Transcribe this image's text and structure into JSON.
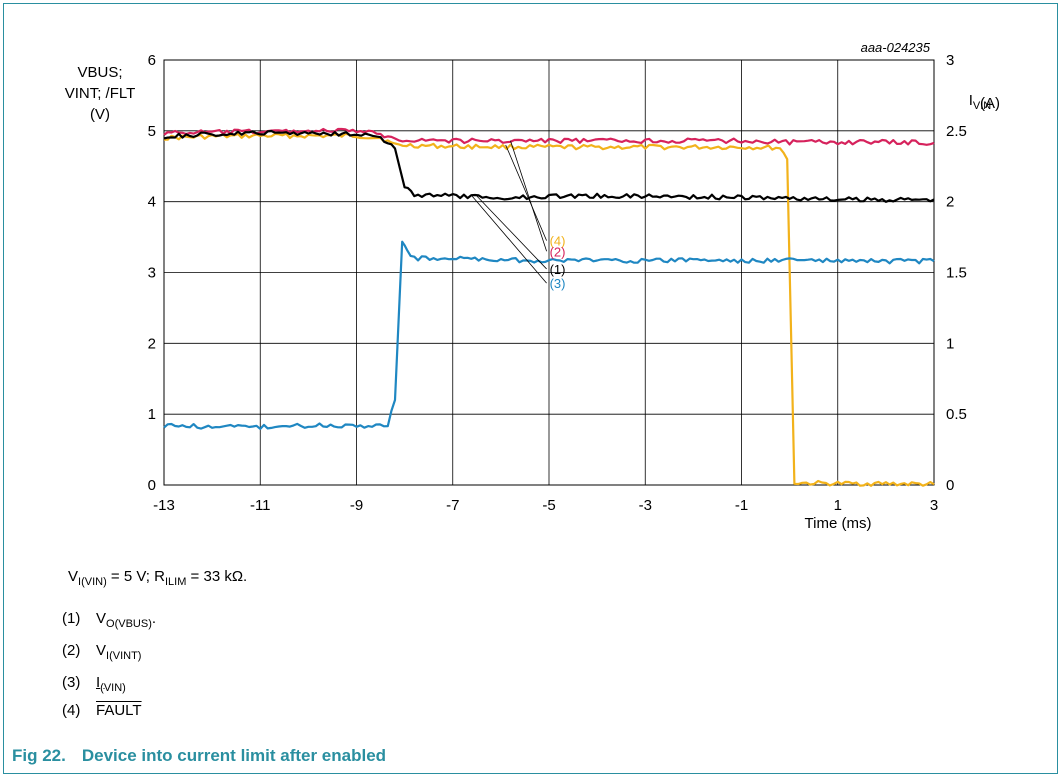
{
  "chart_data": {
    "type": "line",
    "code": "aaa-024235",
    "xlabel": "Time (ms)",
    "xlim": [
      -13,
      3
    ],
    "xticks": [
      "-13",
      "-11",
      "-9",
      "-7",
      "-5",
      "-3",
      "-1",
      "1",
      "3"
    ],
    "ylabel_left": [
      "VBUS;",
      "VINT; /FLT",
      "(V)"
    ],
    "ylim_left": [
      0,
      6
    ],
    "yticks_left": [
      "0",
      "1",
      "2",
      "3",
      "4",
      "5",
      "6"
    ],
    "ylabel_right": {
      "base": "I",
      "sub": "VIN",
      "unit": "(A)"
    },
    "ylim_right": [
      0,
      3
    ],
    "yticks_right": [
      "0",
      "0.5",
      "1",
      "1.5",
      "2",
      "2.5",
      "3"
    ],
    "grid": true,
    "series": [
      {
        "name": "(1)",
        "color": "#000000",
        "axis": "left",
        "points": [
          [
            -13,
            4.92
          ],
          [
            -12,
            4.95
          ],
          [
            -11,
            4.97
          ],
          [
            -10,
            4.97
          ],
          [
            -8.9,
            4.96
          ],
          [
            -8.5,
            4.9
          ],
          [
            -8.2,
            4.75
          ],
          [
            -8.0,
            4.2
          ],
          [
            -7.8,
            4.1
          ],
          [
            -7,
            4.08
          ],
          [
            -6,
            4.05
          ],
          [
            -5,
            4.08
          ],
          [
            -4,
            4.08
          ],
          [
            -3,
            4.08
          ],
          [
            -2,
            4.07
          ],
          [
            -1,
            4.06
          ],
          [
            0,
            4.05
          ],
          [
            1,
            4.03
          ],
          [
            2,
            4.03
          ],
          [
            3,
            4.03
          ]
        ]
      },
      {
        "name": "(2)",
        "color": "#d6225c",
        "axis": "left",
        "points": [
          [
            -13,
            4.97
          ],
          [
            -12,
            4.98
          ],
          [
            -11,
            4.99
          ],
          [
            -10,
            5.0
          ],
          [
            -9,
            5.0
          ],
          [
            -8.5,
            4.95
          ],
          [
            -8.2,
            4.88
          ],
          [
            -7,
            4.86
          ],
          [
            -5,
            4.86
          ],
          [
            -3,
            4.86
          ],
          [
            -1,
            4.86
          ],
          [
            0,
            4.84
          ],
          [
            1,
            4.84
          ],
          [
            2,
            4.84
          ],
          [
            3,
            4.83
          ]
        ]
      },
      {
        "name": "(3)",
        "color": "#1f87c2",
        "axis": "right",
        "points": [
          [
            -13,
            0.42
          ],
          [
            -12,
            0.41
          ],
          [
            -11,
            0.41
          ],
          [
            -10,
            0.42
          ],
          [
            -9,
            0.42
          ],
          [
            -8.35,
            0.42
          ],
          [
            -8.2,
            0.6
          ],
          [
            -8.1,
            1.35
          ],
          [
            -8.05,
            1.72
          ],
          [
            -7.95,
            1.66
          ],
          [
            -7.8,
            1.6
          ],
          [
            -7,
            1.6
          ],
          [
            -6,
            1.59
          ],
          [
            -5,
            1.58
          ],
          [
            -4,
            1.59
          ],
          [
            -3,
            1.58
          ],
          [
            -2,
            1.59
          ],
          [
            -1,
            1.58
          ],
          [
            0,
            1.59
          ],
          [
            1,
            1.58
          ],
          [
            2,
            1.58
          ],
          [
            3,
            1.58
          ]
        ]
      },
      {
        "name": "(4)",
        "color": "#f2b21b",
        "axis": "left",
        "points": [
          [
            -13,
            4.9
          ],
          [
            -12,
            4.92
          ],
          [
            -11,
            4.93
          ],
          [
            -10,
            4.93
          ],
          [
            -9,
            4.93
          ],
          [
            -8.5,
            4.9
          ],
          [
            -8.2,
            4.8
          ],
          [
            -7,
            4.78
          ],
          [
            -5,
            4.77
          ],
          [
            -3,
            4.77
          ],
          [
            -1,
            4.77
          ],
          [
            -0.2,
            4.76
          ],
          [
            -0.05,
            4.6
          ],
          [
            0.1,
            0.03
          ],
          [
            1,
            0.02
          ],
          [
            2,
            0.02
          ],
          [
            3,
            0.01
          ]
        ]
      }
    ],
    "annotations": [
      {
        "text": "(4)",
        "series": "(4)",
        "color": "#f2b21b",
        "from": [
          -5.9,
          4.8
        ],
        "to": [
          -5.05,
          3.45
        ]
      },
      {
        "text": "(2)",
        "series": "(2)",
        "color": "#d6225c",
        "from": [
          -5.8,
          4.86
        ],
        "to": [
          -5.05,
          3.3
        ]
      },
      {
        "text": "(1)",
        "series": "(1)",
        "color": "#000000",
        "from": [
          -6.5,
          4.08
        ],
        "to": [
          -5.05,
          3.05
        ]
      },
      {
        "text": "(3)",
        "series": "(3)",
        "color": "#1f87c2",
        "from": [
          -6.6,
          4.08
        ],
        "to": [
          -5.05,
          2.85
        ]
      }
    ]
  },
  "notes": {
    "conditions": {
      "v": "V",
      "v_sub": "I(VIN)",
      "mid": " = 5 V; R",
      "r_sub": "ILIM",
      "tail": " = 33 kΩ."
    },
    "items": [
      {
        "num": "(1)",
        "base": "V",
        "sub": "O(VBUS)",
        "tail": "."
      },
      {
        "num": "(2)",
        "base": "V",
        "sub": "I(VINT)",
        "tail": ""
      },
      {
        "num": "(3)",
        "base": "I",
        "sub": "(VIN)",
        "tail": ""
      },
      {
        "num": "(4)",
        "text": "FAULT"
      }
    ]
  },
  "caption": {
    "number": "Fig 22.",
    "title": "Device into current limit after enabled",
    "color": "#2a8fa0"
  }
}
